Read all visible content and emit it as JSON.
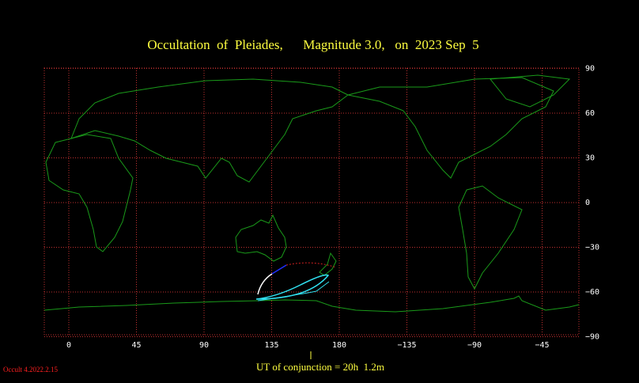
{
  "title": "Occultation  of  Pleiades,      Magnitude 3.0,   on  2023 Sep  5",
  "map": {
    "xticks": [
      0,
      45,
      90,
      135,
      180,
      {
        "value": -135,
        "label": "−135"
      },
      {
        "value": -90,
        "label": "−90"
      },
      {
        "value": -45,
        "label": "−45"
      }
    ],
    "yticks": [
      90,
      60,
      30,
      0,
      {
        "value": -30,
        "label": "−30"
      },
      {
        "value": -60,
        "label": "−60"
      },
      {
        "value": -90,
        "label": "−90"
      }
    ]
  },
  "conjunction_label": "UT of conjunction = 20h  1.2m",
  "version": "Occult 4.2022.2.15"
}
